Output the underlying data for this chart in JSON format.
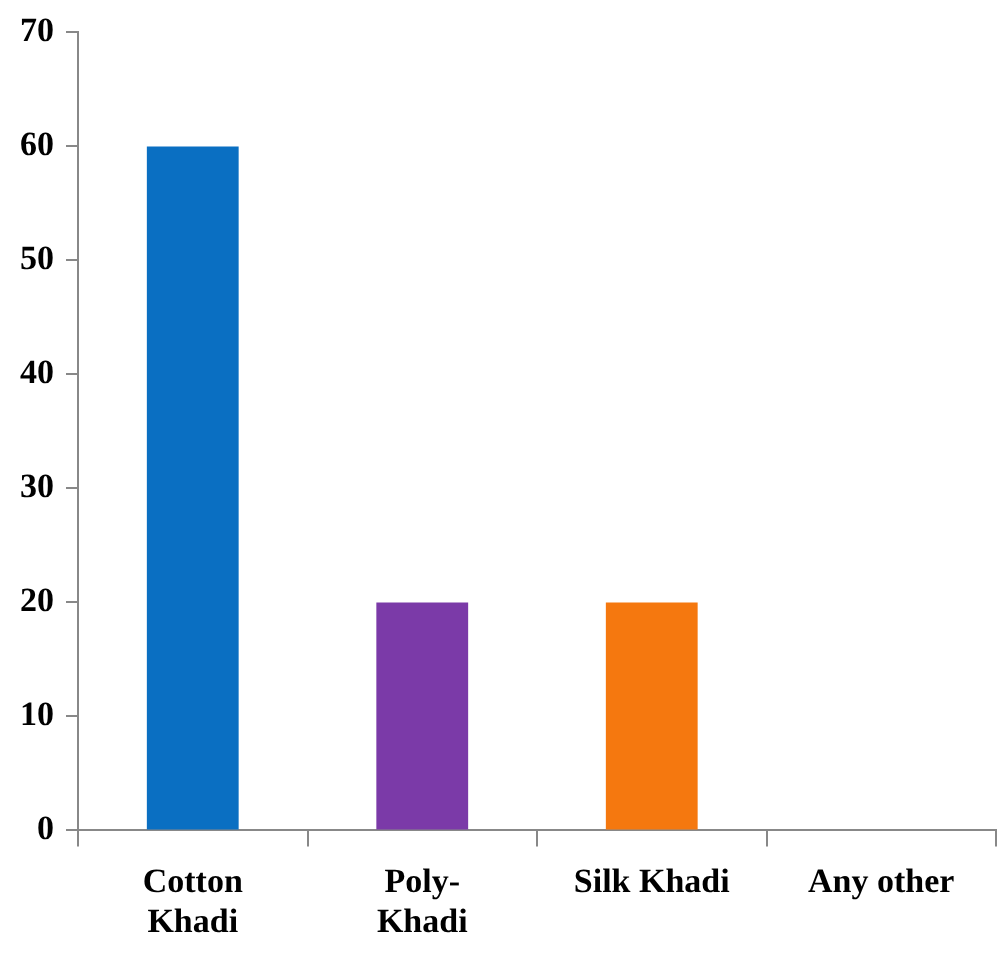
{
  "chart_data": {
    "type": "bar",
    "categories": [
      "Cotton\nKhadi",
      "Poly-\nKhadi",
      "Silk Khadi",
      "Any other"
    ],
    "values": [
      60,
      20,
      20,
      0
    ],
    "colors": [
      "#0a6fc2",
      "#7b3aa8",
      "#f5780f",
      "#808080"
    ],
    "ylim": [
      0,
      70
    ],
    "yticks": [
      0,
      10,
      20,
      30,
      40,
      50,
      60,
      70
    ],
    "grid": false,
    "legend": false
  }
}
